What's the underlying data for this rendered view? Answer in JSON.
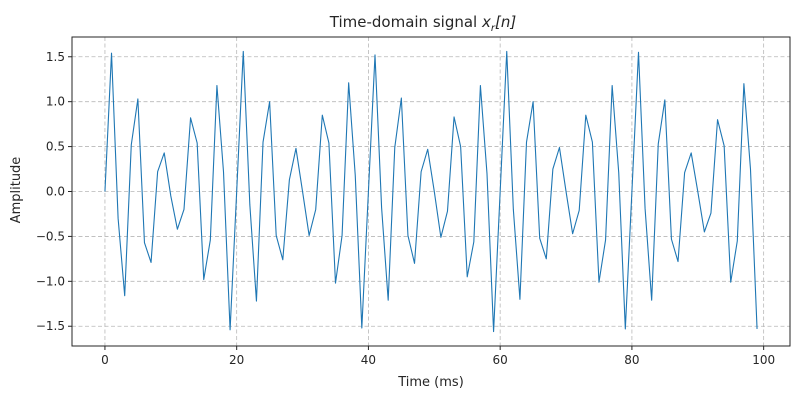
{
  "chart_data": {
    "type": "line",
    "title": "Time-domain signal ",
    "title_math": {
      "symbol": "x",
      "subscript": "r",
      "arg": "[n]"
    },
    "xlabel": "Time (ms)",
    "ylabel": "Amplitude",
    "xlim": [
      -5,
      104
    ],
    "ylim": [
      -1.72,
      1.72
    ],
    "xticks": [
      0,
      20,
      40,
      60,
      80,
      100
    ],
    "xtick_labels": [
      "0",
      "20",
      "40",
      "60",
      "80",
      "100"
    ],
    "yticks": [
      -1.5,
      -1.0,
      -0.5,
      0.0,
      0.5,
      1.0,
      1.5
    ],
    "ytick_labels": [
      "−1.5",
      "−1.0",
      "−0.5",
      "0.0",
      "0.5",
      "1.0",
      "1.5"
    ],
    "grid": true,
    "color": "#1f77b4",
    "series": [
      {
        "x": [
          0,
          1,
          2,
          3,
          4,
          5,
          6,
          7,
          8,
          9,
          10,
          11,
          12,
          13,
          14,
          15,
          16,
          17,
          18,
          19,
          20,
          21,
          22,
          23,
          24,
          25,
          26,
          27,
          28,
          29,
          30,
          31,
          32,
          33,
          34,
          35,
          36,
          37,
          38,
          39,
          40,
          41,
          42,
          43,
          44,
          45,
          46,
          47,
          48,
          49,
          50,
          51,
          52,
          53,
          54,
          55,
          56,
          57,
          58,
          59,
          60,
          61,
          62,
          63,
          64,
          65,
          66,
          67,
          68,
          69,
          70,
          71,
          72,
          73,
          74,
          75,
          76,
          77,
          78,
          79,
          80,
          81,
          82,
          83,
          84,
          85,
          86,
          87,
          88,
          89,
          90,
          91,
          92,
          93,
          94,
          95,
          96,
          97,
          98,
          99
        ],
        "values": [
          0.0,
          1.54,
          -0.3,
          -1.16,
          0.52,
          1.03,
          -0.57,
          -0.79,
          0.22,
          0.43,
          -0.05,
          -0.42,
          -0.2,
          0.82,
          0.54,
          -0.98,
          -0.54,
          1.18,
          0.22,
          -1.54,
          0.0,
          1.56,
          -0.15,
          -1.22,
          0.55,
          1.0,
          -0.49,
          -0.76,
          0.13,
          0.48,
          0.0,
          -0.49,
          -0.2,
          0.85,
          0.54,
          -1.02,
          -0.49,
          1.21,
          0.18,
          -1.52,
          0.0,
          1.52,
          -0.18,
          -1.21,
          0.49,
          1.04,
          -0.49,
          -0.8,
          0.22,
          0.47,
          0.0,
          -0.51,
          -0.22,
          0.83,
          0.5,
          -0.95,
          -0.56,
          1.18,
          0.2,
          -1.56,
          0.0,
          1.56,
          -0.2,
          -1.2,
          0.55,
          1.0,
          -0.52,
          -0.75,
          0.25,
          0.49,
          0.0,
          -0.47,
          -0.21,
          0.85,
          0.55,
          -1.01,
          -0.54,
          1.18,
          0.21,
          -1.53,
          0.0,
          1.55,
          -0.19,
          -1.21,
          0.53,
          1.02,
          -0.53,
          -0.78,
          0.21,
          0.43,
          0.0,
          -0.45,
          -0.24,
          0.8,
          0.51,
          -1.01,
          -0.55,
          1.2,
          0.25,
          -1.53
        ]
      }
    ]
  }
}
